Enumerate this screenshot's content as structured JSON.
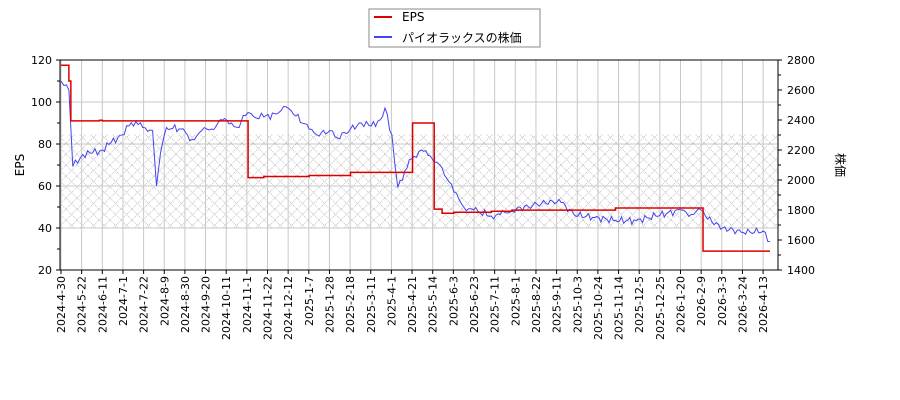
{
  "chart_data": {
    "type": "line",
    "title": "",
    "legend": {
      "position": "top-center",
      "entries": [
        {
          "label": "EPS",
          "color": "#dd0000"
        },
        {
          "label": "パイオラックスの株価",
          "color": "#4444ee"
        }
      ]
    },
    "xlabel": "",
    "ylabel_left": "EPS",
    "ylabel_right": "株価",
    "ylim_left": [
      20,
      120
    ],
    "ylim_right": [
      1400,
      2800
    ],
    "yticks_left": [
      20,
      40,
      60,
      80,
      100,
      120
    ],
    "yticks_right": [
      1400,
      1600,
      1800,
      2000,
      2200,
      2400,
      2600,
      2800
    ],
    "grid": true,
    "hatched_band_eps": [
      40,
      85
    ],
    "x_tick_labels": [
      "2024-4-30",
      "2024-5-22",
      "2024-6-11",
      "2024-7-1",
      "2024-7-22",
      "2024-8-9",
      "2024-8-30",
      "2024-9-20",
      "2024-10-11",
      "2024-11-1",
      "2024-11-22",
      "2024-12-12",
      "2025-1-7",
      "2025-1-28",
      "2025-2-18",
      "2025-3-11",
      "2025-4-1",
      "2025-4-21",
      "2025-5-14",
      "2025-6-3",
      "2025-6-23",
      "2025-7-11",
      "2025-8-1",
      "2025-8-22",
      "2025-9-11",
      "2025-10-3",
      "2025-10-24",
      "2025-11-14",
      "2025-12-5",
      "2025-12-25",
      "2026-1-20",
      "2026-2-9",
      "2026-3-3",
      "2026-3-24",
      "2026-4-13"
    ],
    "series": [
      {
        "name": "EPS",
        "axis": "left",
        "color": "#dd0000",
        "step": true,
        "points": [
          [
            "2024-4-30",
            117.5
          ],
          [
            "2024-5-8",
            117.5
          ],
          [
            "2024-5-8",
            110
          ],
          [
            "2024-5-10",
            91
          ],
          [
            "2024-6-1",
            91
          ],
          [
            "2024-6-8",
            91.3
          ],
          [
            "2024-6-11",
            91
          ],
          [
            "2024-10-20",
            91
          ],
          [
            "2024-11-6",
            91
          ],
          [
            "2024-11-6",
            64
          ],
          [
            "2024-11-22",
            64.5
          ],
          [
            "2025-1-7",
            65
          ],
          [
            "2025-2-18",
            66.5
          ],
          [
            "2025-4-21",
            66.5
          ],
          [
            "2025-4-22",
            90
          ],
          [
            "2025-5-13",
            90
          ],
          [
            "2025-5-14",
            49
          ],
          [
            "2025-5-22",
            47
          ],
          [
            "2025-6-3",
            47.5
          ],
          [
            "2025-7-11",
            48
          ],
          [
            "2025-8-1",
            48.5
          ],
          [
            "2025-10-3",
            48.5
          ],
          [
            "2025-11-14",
            49.5
          ],
          [
            "2026-2-9",
            49.5
          ],
          [
            "2026-2-11",
            29
          ],
          [
            "2026-4-20",
            29
          ]
        ]
      },
      {
        "name": "パイオラックスの株価",
        "axis": "right",
        "color": "#4444ee",
        "points": [
          [
            "2024-4-30",
            2660
          ],
          [
            "2024-5-3",
            2630
          ],
          [
            "2024-5-8",
            2600
          ],
          [
            "2024-5-12",
            2090
          ],
          [
            "2024-5-22",
            2170
          ],
          [
            "2024-6-1",
            2180
          ],
          [
            "2024-6-11",
            2200
          ],
          [
            "2024-6-20",
            2250
          ],
          [
            "2024-7-1",
            2300
          ],
          [
            "2024-7-8",
            2360
          ],
          [
            "2024-7-15",
            2390
          ],
          [
            "2024-7-22",
            2350
          ],
          [
            "2024-8-1",
            2330
          ],
          [
            "2024-8-5",
            1960
          ],
          [
            "2024-8-9",
            2180
          ],
          [
            "2024-8-15",
            2350
          ],
          [
            "2024-8-30",
            2340
          ],
          [
            "2024-9-10",
            2270
          ],
          [
            "2024-9-20",
            2330
          ],
          [
            "2024-9-30",
            2340
          ],
          [
            "2024-10-11",
            2400
          ],
          [
            "2024-10-20",
            2380
          ],
          [
            "2024-10-28",
            2350
          ],
          [
            "2024-11-1",
            2430
          ],
          [
            "2024-11-6",
            2450
          ],
          [
            "2024-11-12",
            2420
          ],
          [
            "2024-11-22",
            2420
          ],
          [
            "2024-12-5",
            2440
          ],
          [
            "2024-12-12",
            2490
          ],
          [
            "2024-12-20",
            2460
          ],
          [
            "2025-1-7",
            2340
          ],
          [
            "2025-1-15",
            2300
          ],
          [
            "2025-1-28",
            2330
          ],
          [
            "2025-2-5",
            2280
          ],
          [
            "2025-2-18",
            2340
          ],
          [
            "2025-3-1",
            2380
          ],
          [
            "2025-3-11",
            2360
          ],
          [
            "2025-3-20",
            2400
          ],
          [
            "2025-3-25",
            2480
          ],
          [
            "2025-4-1",
            2300
          ],
          [
            "2025-4-7",
            1950
          ],
          [
            "2025-4-14",
            2060
          ],
          [
            "2025-4-21",
            2140
          ],
          [
            "2025-5-1",
            2200
          ],
          [
            "2025-5-10",
            2160
          ],
          [
            "2025-5-14",
            2120
          ],
          [
            "2025-5-22",
            2080
          ],
          [
            "2025-6-3",
            1920
          ],
          [
            "2025-6-13",
            1820
          ],
          [
            "2025-6-23",
            1800
          ],
          [
            "2025-7-11",
            1760
          ],
          [
            "2025-7-20",
            1770
          ],
          [
            "2025-8-1",
            1800
          ],
          [
            "2025-8-22",
            1830
          ],
          [
            "2025-9-11",
            1860
          ],
          [
            "2025-9-20",
            1850
          ],
          [
            "2025-10-3",
            1770
          ],
          [
            "2025-10-24",
            1750
          ],
          [
            "2025-11-14",
            1730
          ],
          [
            "2025-12-5",
            1730
          ],
          [
            "2025-12-25",
            1760
          ],
          [
            "2026-1-20",
            1800
          ],
          [
            "2026-1-30",
            1770
          ],
          [
            "2026-2-9",
            1800
          ],
          [
            "2026-2-20",
            1720
          ],
          [
            "2026-3-3",
            1680
          ],
          [
            "2026-3-24",
            1650
          ],
          [
            "2026-4-13",
            1660
          ],
          [
            "2026-4-20",
            1590
          ]
        ]
      }
    ]
  }
}
